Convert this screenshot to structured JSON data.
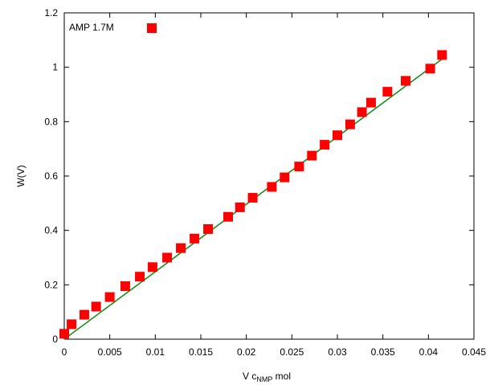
{
  "chart_data": {
    "type": "scatter",
    "title": "",
    "xlabel": "V c_NMP mol",
    "xlabel_main": "V c",
    "xlabel_sub": "NMP",
    "xlabel_unit": " mol",
    "ylabel": "W(V)",
    "xlim": [
      0,
      0.045
    ],
    "ylim": [
      0,
      1.2
    ],
    "xticks": [
      0,
      0.005,
      0.01,
      0.015,
      0.02,
      0.025,
      0.03,
      0.035,
      0.04,
      0.045
    ],
    "xtick_labels": [
      "0",
      "0.005",
      "0.01",
      "0.015",
      "0.02",
      "0.025",
      "0.03",
      "0.035",
      "0.04",
      "0.045"
    ],
    "yticks": [
      0,
      0.2,
      0.4,
      0.6,
      0.8,
      1,
      1.2
    ],
    "ytick_labels": [
      "0",
      "0.2",
      "0.4",
      "0.6",
      "0.8",
      "1",
      "1.2"
    ],
    "grid": false,
    "legend_position": "top-left",
    "series": [
      {
        "name": "AMP 1.7M",
        "color": "#ff0000",
        "marker": "square",
        "x": [
          0,
          0.0008,
          0.0022,
          0.0035,
          0.005,
          0.0067,
          0.0083,
          0.0097,
          0.0113,
          0.0128,
          0.0143,
          0.0158,
          0.018,
          0.0193,
          0.0207,
          0.0228,
          0.0242,
          0.0258,
          0.0272,
          0.0286,
          0.03,
          0.0314,
          0.0327,
          0.0337,
          0.0355,
          0.0375,
          0.0402,
          0.0415
        ],
        "y": [
          0.02,
          0.055,
          0.09,
          0.12,
          0.155,
          0.195,
          0.23,
          0.265,
          0.3,
          0.335,
          0.37,
          0.405,
          0.45,
          0.485,
          0.52,
          0.56,
          0.595,
          0.635,
          0.675,
          0.715,
          0.75,
          0.79,
          0.835,
          0.87,
          0.91,
          0.95,
          0.995,
          1.045
        ]
      },
      {
        "name": "",
        "type": "line",
        "color": "#1a8c1a",
        "x": [
          0,
          0.0415
        ],
        "y": [
          0,
          1.03
        ]
      }
    ]
  }
}
